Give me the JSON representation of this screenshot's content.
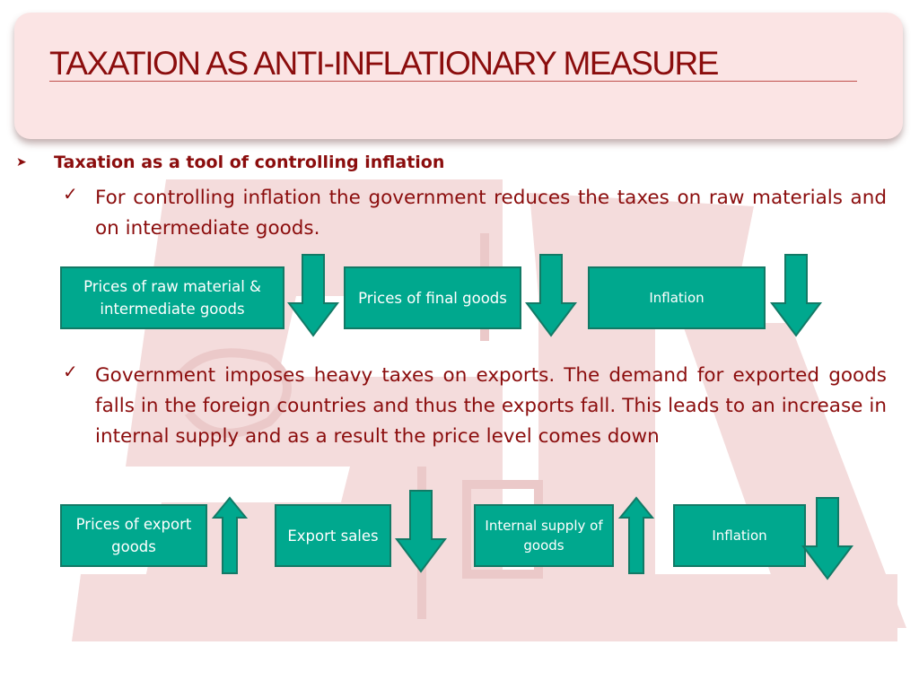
{
  "slide": {
    "title": "TAXATION AS ANTI-INFLATIONARY MEASURE",
    "bullet_1": "Taxation as a tool of controlling inflation",
    "point_1": "For controlling inflation the government reduces the taxes on raw materials and on intermediate goods.",
    "point_2": "Government imposes heavy taxes on exports. The demand for exported goods falls in the foreign countries and thus the exports fall. This leads to an increase in internal supply and as a result the price level comes down"
  },
  "flow_1": {
    "box_1": "Prices of raw material & intermediate goods",
    "box_1_arrow": "down",
    "box_2": "Prices of final goods",
    "box_2_arrow": "down",
    "box_3": "Inflation",
    "box_3_arrow": "down"
  },
  "flow_2": {
    "box_1": "Prices of export goods",
    "box_1_arrow": "up",
    "box_2": "Export sales",
    "box_2_arrow": "down",
    "box_3": "Internal supply of goods",
    "box_3_arrow": "up",
    "box_4": "Inflation",
    "box_4_arrow": "down"
  },
  "colors": {
    "title_text": "#8b0d0d",
    "title_box": "#fbe4e4",
    "flow_box_fill": "#00a88e",
    "flow_box_border": "#127a66",
    "watermark": "#f3dada"
  }
}
